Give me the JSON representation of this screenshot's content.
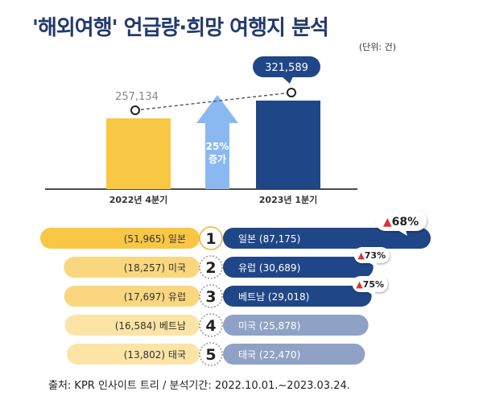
{
  "title": "'해외여행' 언급량·희망 여행지 분석",
  "unit": "(단위: 건)",
  "footer": "출처: KPR 인사이트 트리 / 분석기간: 2022.10.01.~2023.03.24.",
  "colors": {
    "navy": "#1f4787",
    "yellow_dark": "#f8c744",
    "yellow_mid": "#fad77f",
    "yellow_light": "#fce4a6",
    "slate": "#8fa2c6",
    "arrow": "#8ab9f1",
    "badge_red": "#d6353a",
    "ring_gold": "#e8b84a"
  },
  "chart_data": [
    {
      "type": "bar",
      "categories": [
        "2022년 4분기",
        "2023년 1분기"
      ],
      "values": [
        257134,
        321589
      ],
      "value_labels": [
        "257,134",
        "321,589"
      ],
      "growth_label_line1": "25%",
      "growth_label_line2": "증가",
      "grid": false
    },
    {
      "type": "bar",
      "ranks": [
        "1",
        "2",
        "3",
        "4",
        "5"
      ],
      "series": [
        {
          "period": "2022년 4분기",
          "labels": [
            "(51,965) 일본",
            "(18,257) 미국",
            "(17,697) 유럽",
            "(16,584) 베트남",
            "(13,802) 태국"
          ],
          "values": [
            51965,
            18257,
            17697,
            16584,
            13802
          ]
        },
        {
          "period": "2023년 1분기",
          "labels": [
            "일본 (87,175)",
            "유럽 (30,689)",
            "베트남 (29,018)",
            "미국 (25,878)",
            "태국 (22,470)"
          ],
          "values": [
            87175,
            30689,
            29018,
            25878,
            22470
          ]
        }
      ],
      "growth_badges": [
        "▲68%",
        "▲73%",
        "▲75%"
      ]
    }
  ]
}
